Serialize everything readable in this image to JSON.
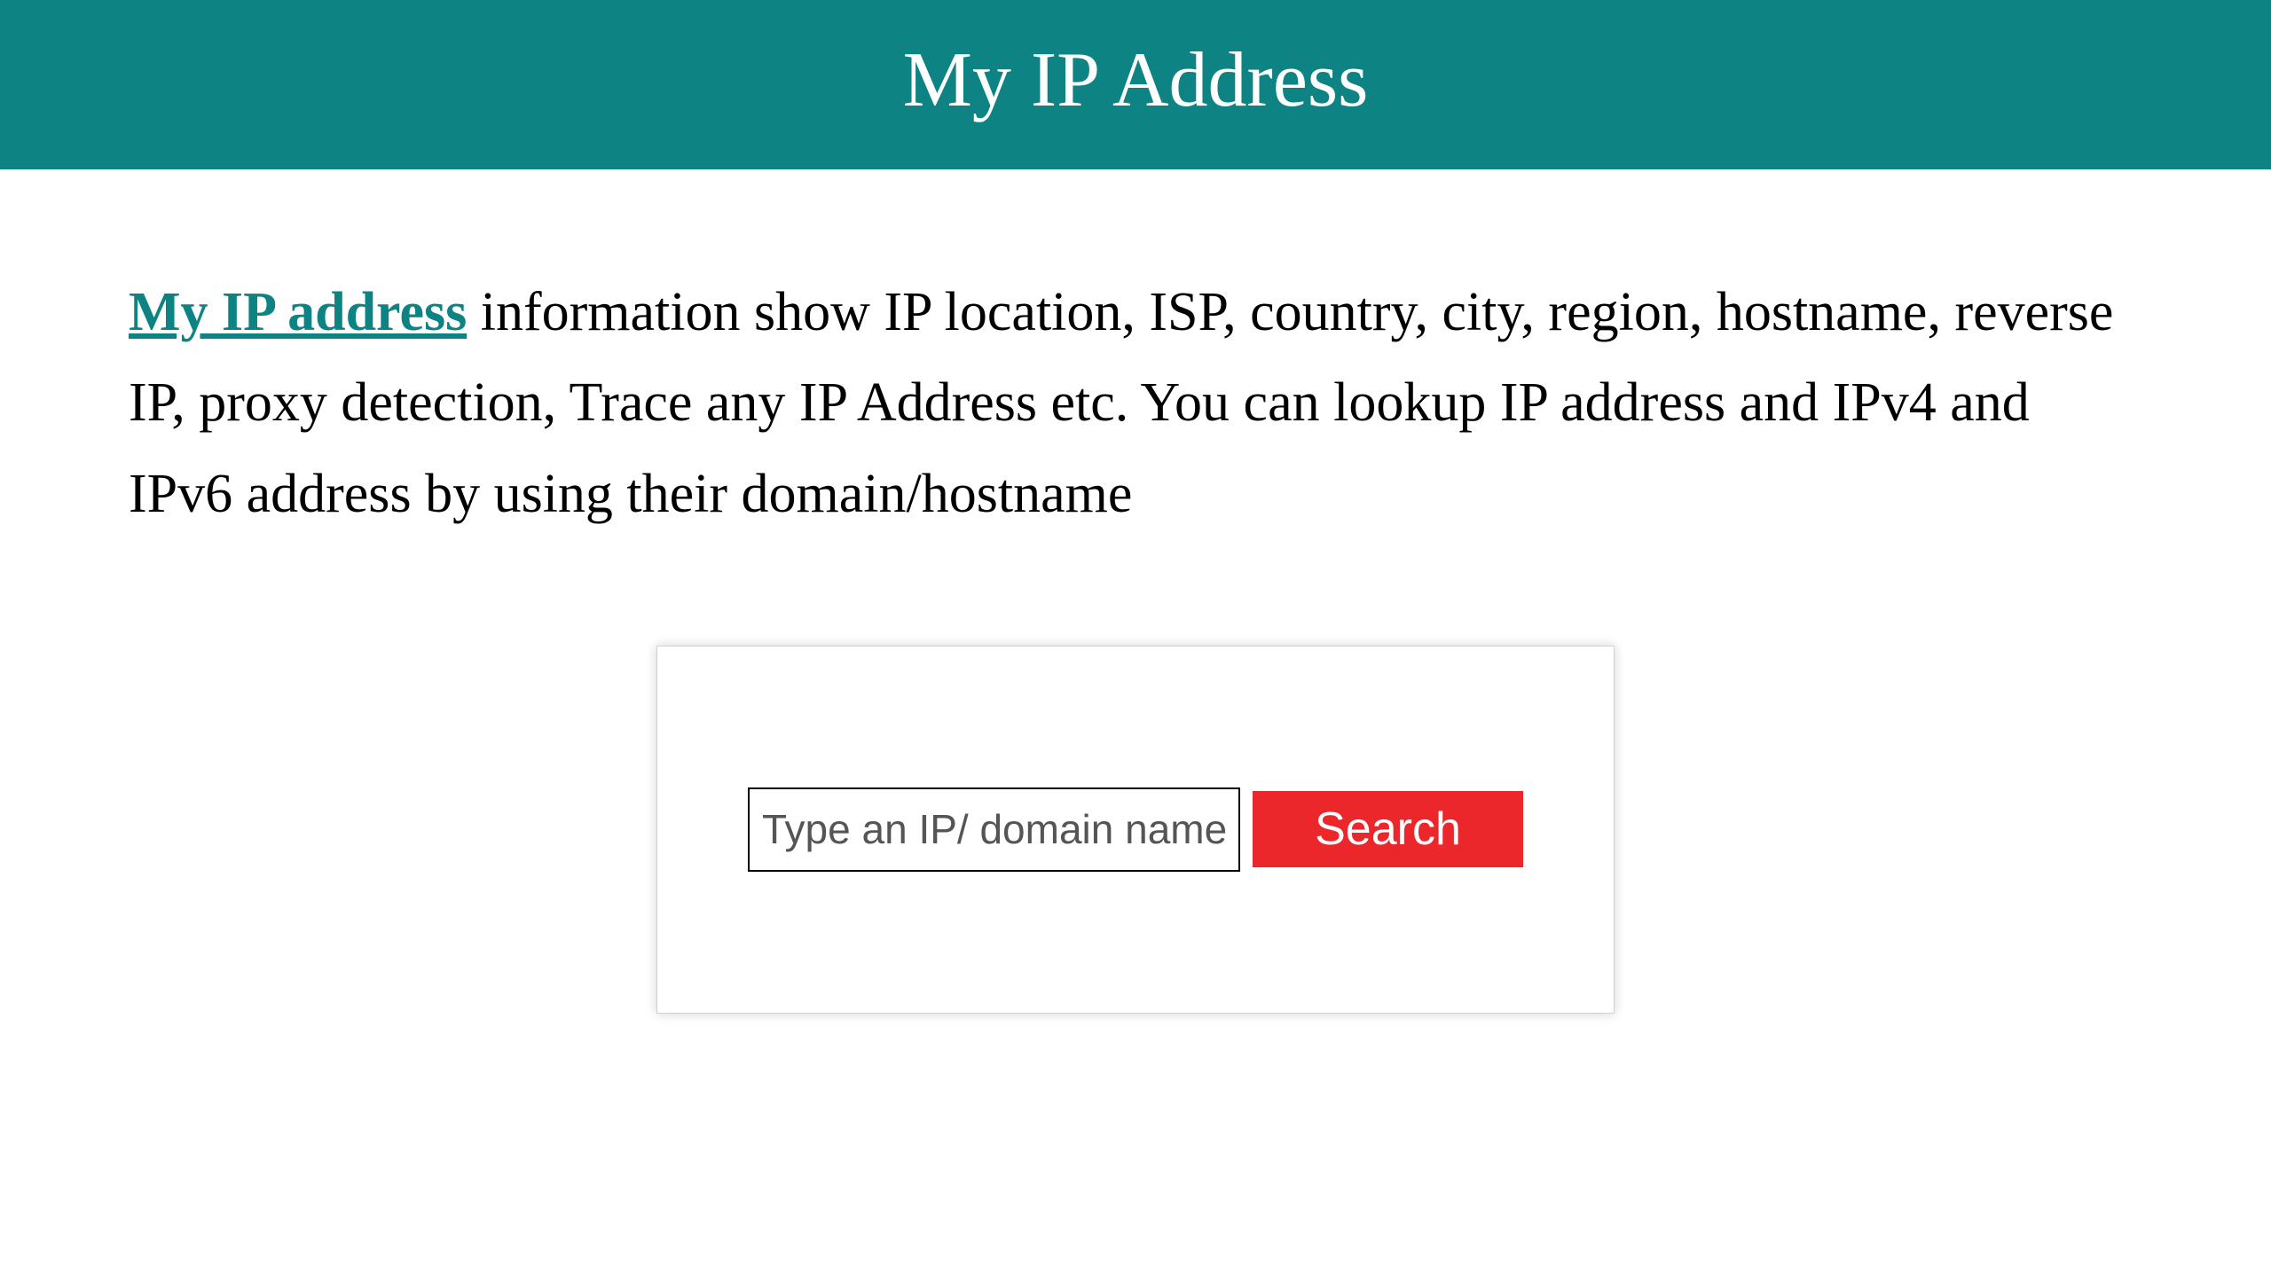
{
  "header": {
    "title": "My IP Address",
    "background_color": "#0d8383",
    "text_color": "#ffffff",
    "title_fontsize": 88
  },
  "content": {
    "link_text": "My IP address",
    "link_color": "#0d8383",
    "description_text": " information show IP location, ISP, country, city, region, hostname, reverse IP, proxy detection, Trace any IP Address etc. You can lookup IP address and IPv4 and IPv6 address by using their domain/hostname",
    "description_fontsize": 62,
    "description_color": "#000000"
  },
  "search": {
    "placeholder": "Type an IP/ domain name",
    "button_label": "Search",
    "button_color": "#ec272c",
    "button_text_color": "#ffffff",
    "input_border_color": "#000000",
    "box_background": "#ffffff",
    "box_border_color": "#d0d0d0"
  }
}
